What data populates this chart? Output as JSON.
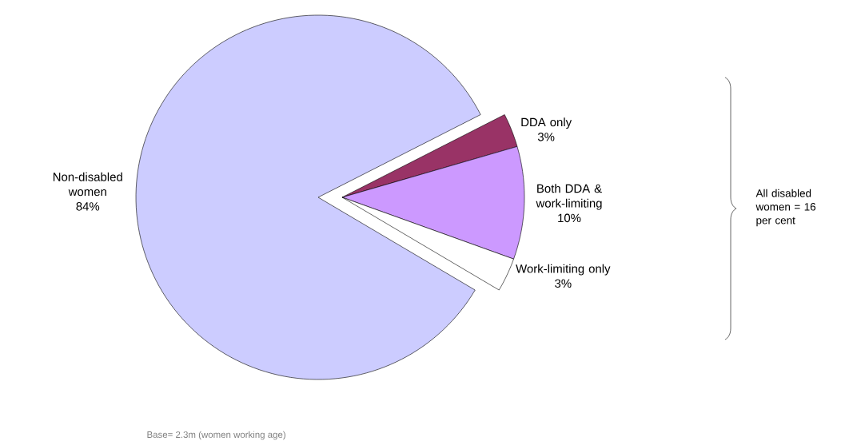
{
  "chart_data": {
    "type": "pie",
    "categories": [
      "Non-disabled women",
      "DDA only",
      "Both DDA & work-limiting",
      "Work-limiting only"
    ],
    "values": [
      84,
      3,
      10,
      3
    ],
    "colors": [
      "#ccccff",
      "#993366",
      "#cc99ff",
      "#ffffff"
    ],
    "value_labels": [
      "84%",
      "3%",
      "10%",
      "3%"
    ],
    "annotations": [
      "All disabled women = 16 per cent",
      "Base= 2.3m (women working age)"
    ]
  }
}
